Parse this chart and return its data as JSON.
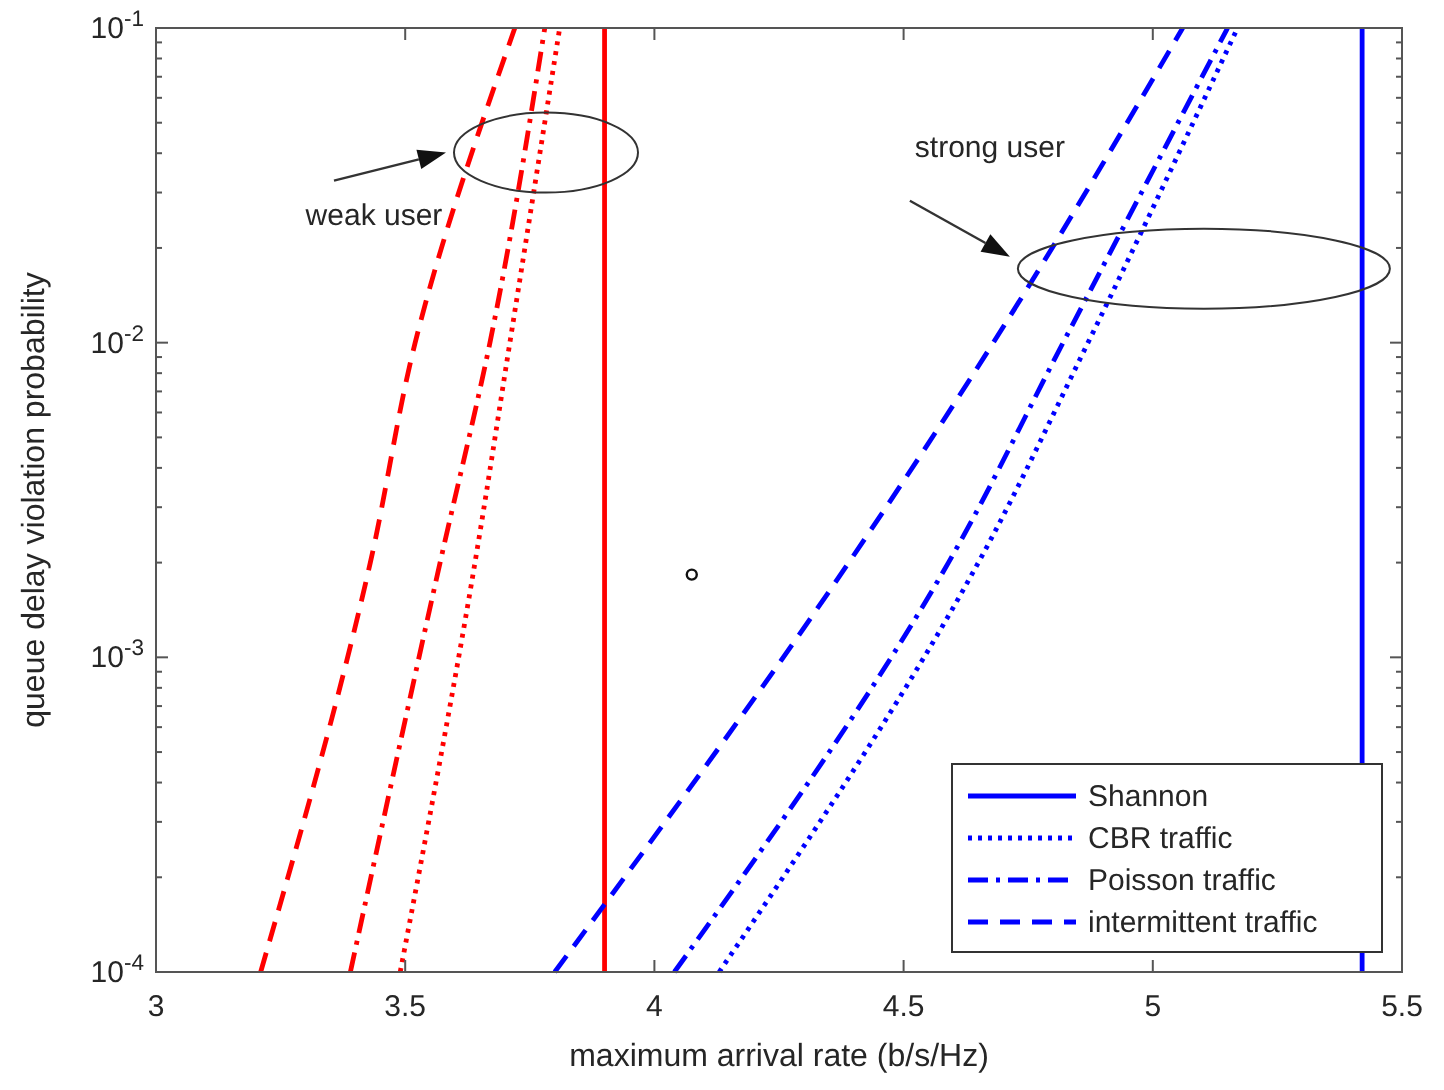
{
  "chart_data": {
    "type": "line",
    "xlabel": "maximum arrival rate (b/s/Hz)",
    "ylabel": "queue delay violation probability",
    "log": "y",
    "xlim": [
      3,
      5.5
    ],
    "xticks": [
      3,
      3.5,
      4,
      4.5,
      5,
      5.5
    ],
    "ylim": [
      0.0001,
      0.1
    ],
    "yticks": [
      {
        "value": 0.0001,
        "label": "10$^{-4}$"
      },
      {
        "value": 0.001,
        "label": "10$^{-3}$"
      },
      {
        "value": 0.01,
        "label": "10$^{-2}$"
      },
      {
        "value": 0.1,
        "label": "10$^{-1}$"
      }
    ],
    "grid": false,
    "legend": "bottom right",
    "series": [
      {
        "color": "#ff0000",
        "line_style": "solid",
        "x": [
          3.9,
          3.9
        ],
        "values": [
          0.0001,
          0.1
        ]
      },
      {
        "color": "#ff0000",
        "line_style": "dotted",
        "x": [
          3.49,
          3.64,
          3.71,
          3.81
        ],
        "values": [
          0.0001,
          0.002,
          0.01,
          0.1
        ]
      },
      {
        "color": "#ff0000",
        "line_style": "dashdot",
        "x": [
          3.39,
          3.57,
          3.67,
          3.78
        ],
        "values": [
          0.0001,
          0.002,
          0.01,
          0.1
        ]
      },
      {
        "color": "#ff0000",
        "line_style": "dashed",
        "x": [
          3.21,
          3.43,
          3.52,
          3.72
        ],
        "values": [
          0.0001,
          0.002,
          0.01,
          0.1
        ]
      },
      {
        "name": "Shannon",
        "color": "#0000ff",
        "line_style": "solid",
        "x": [
          5.42,
          5.42
        ],
        "values": [
          0.0001,
          0.1
        ]
      },
      {
        "name": "CBR traffic",
        "color": "#0000ff",
        "line_style": "dotted",
        "x": [
          4.13,
          4.65,
          4.87,
          5.17
        ],
        "values": [
          0.0001,
          0.002,
          0.01,
          0.1
        ]
      },
      {
        "name": "Poisson traffic",
        "color": "#0000ff",
        "line_style": "dashdot",
        "x": [
          4.04,
          4.59,
          4.82,
          5.15
        ],
        "values": [
          0.0001,
          0.002,
          0.01,
          0.1
        ]
      },
      {
        "name": "intermittent traffic",
        "color": "#0000ff",
        "line_style": "dashed",
        "x": [
          3.8,
          4.39,
          4.68,
          5.06
        ],
        "values": [
          0.0001,
          0.002,
          0.01,
          0.1
        ]
      }
    ],
    "annotations": [
      "weak user",
      "strong user"
    ]
  }
}
